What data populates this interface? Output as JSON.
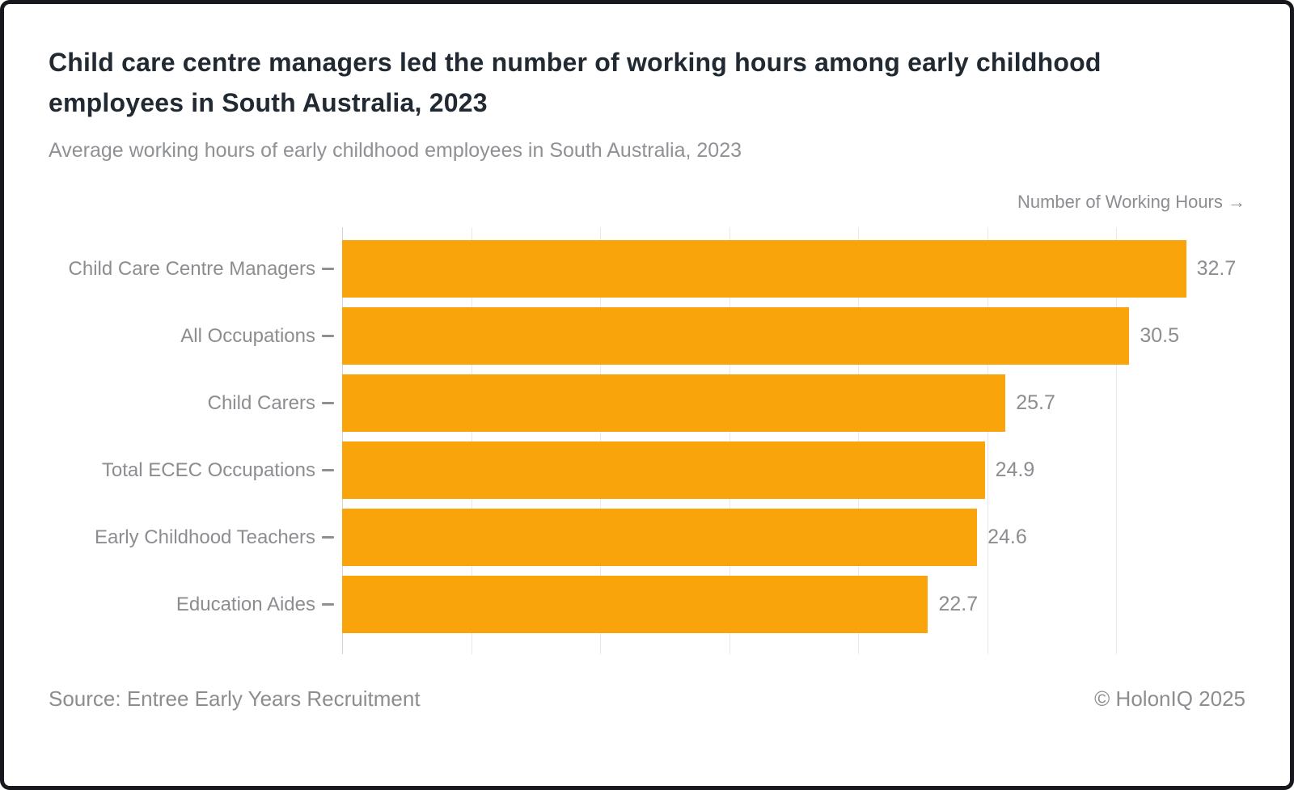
{
  "card": {
    "title": "Child care centre managers led the number of working hours among early childhood employees in South Australia, 2023",
    "subtitle": "Average working hours of early childhood employees in South Australia, 2023",
    "footer": {
      "source": "Source: Entree Early Years Recruitment",
      "credit": "© HolonIQ 2025"
    }
  },
  "chart_data": {
    "type": "bar",
    "orientation": "horizontal",
    "title": "Child care centre managers led the number of working hours among early childhood employees in South Australia, 2023",
    "subtitle": "Average working hours of early childhood employees in South Australia, 2023",
    "xlabel": "Number of Working Hours →",
    "ylabel": "",
    "categories": [
      "Child Care Centre Managers",
      "All Occupations",
      "Child Carers",
      "Total ECEC Occupations",
      "Early Childhood Teachers",
      "Education Aides"
    ],
    "values": [
      32.7,
      30.5,
      25.7,
      24.9,
      24.6,
      22.7
    ],
    "xlim": [
      0,
      35
    ],
    "grid_step": 5,
    "grid": true,
    "legend": false,
    "bar_color": "#FAA40C",
    "text_color": "#8B8D90",
    "title_color": "#212932"
  }
}
